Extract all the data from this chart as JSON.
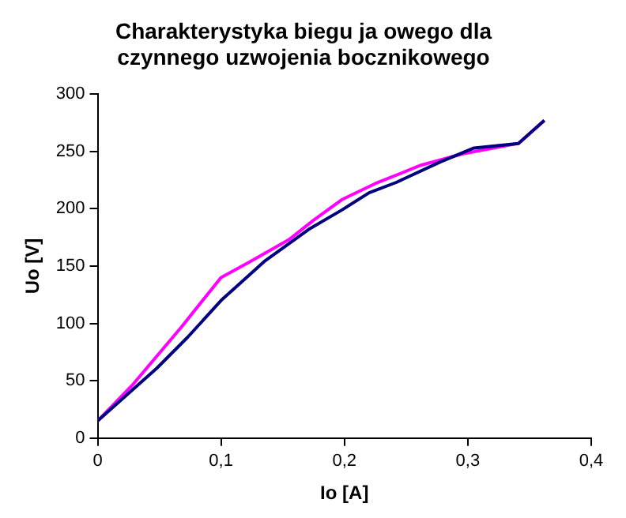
{
  "chart_data": {
    "type": "line",
    "title": "Charakterystyka biegu ja owego dla czynnego uzwojenia bocznikowego",
    "xlabel": "Io [A]",
    "ylabel": "Uo [V]",
    "xlim": [
      0,
      0.4
    ],
    "xticks": [
      0,
      {
        "value": 0.1,
        "label": "0,1"
      },
      {
        "value": 0.2,
        "label": "0,2"
      },
      {
        "value": 0.3,
        "label": "0,3"
      },
      {
        "value": 0.4,
        "label": "0,4"
      }
    ],
    "ylim": [
      0,
      300
    ],
    "yticks": [
      0,
      50,
      100,
      150,
      200,
      250,
      300
    ],
    "grid": false,
    "legend": false,
    "marker": "none",
    "line_style": "solid",
    "series": [
      {
        "color": "#000080",
        "x": [
          0,
          0.048,
          0.073,
          0.1,
          0.135,
          0.171,
          0.198,
          0.22,
          0.242,
          0.278,
          0.305,
          0.341,
          0.362
        ],
        "values": [
          15,
          61,
          88,
          120,
          154,
          182,
          199,
          214,
          223,
          241,
          253,
          257,
          277
        ]
      },
      {
        "color": "#ff00ff",
        "x": [
          0,
          0.028,
          0.068,
          0.1,
          0.122,
          0.155,
          0.175,
          0.198,
          0.225,
          0.262,
          0.296,
          0.341,
          0.362
        ],
        "values": [
          15,
          46,
          97,
          140,
          153,
          173,
          190,
          208,
          222,
          238,
          248,
          257,
          277
        ]
      }
    ]
  }
}
